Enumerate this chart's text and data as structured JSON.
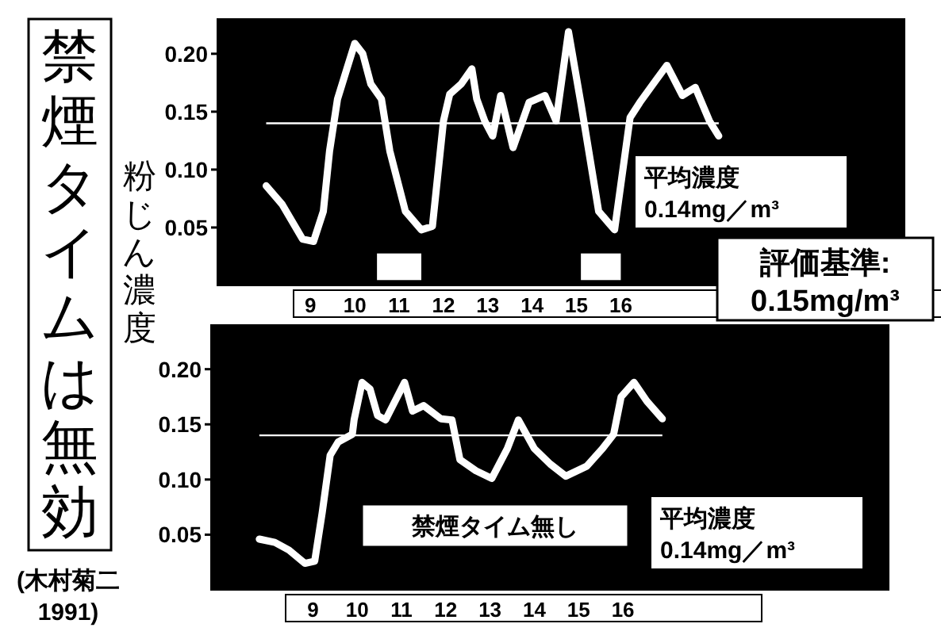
{
  "chart_data": [
    {
      "type": "line",
      "title": "禁煙タイムは無効",
      "ylabel": "粉じん濃度",
      "annotations": [
        "評価基準:\n0.15mg/m³"
      ],
      "x": [
        8.0,
        8.36,
        8.82,
        9.07,
        9.29,
        9.43,
        9.61,
        9.82,
        10.0,
        10.18,
        10.36,
        10.6,
        10.79,
        11.14,
        11.5,
        11.75,
        12.0,
        12.14,
        12.4,
        12.64,
        12.75,
        12.93,
        13.11,
        13.29,
        13.57,
        13.93,
        14.29,
        14.54,
        14.82,
        15.11,
        15.5,
        15.86,
        16.21,
        16.43,
        16.79,
        17.04,
        17.39,
        17.68,
        18.0,
        18.21
      ],
      "series": [
        {
          "color": "#ffffff",
          "line_style": "solid",
          "values": [
            0.086,
            0.07,
            0.04,
            0.038,
            0.064,
            0.116,
            0.161,
            0.187,
            0.209,
            0.2,
            0.174,
            0.161,
            0.116,
            0.064,
            0.048,
            0.051,
            0.142,
            0.165,
            0.174,
            0.187,
            0.161,
            0.142,
            0.129,
            0.164,
            0.119,
            0.158,
            0.164,
            0.142,
            0.219,
            0.155,
            0.064,
            0.048,
            0.145,
            0.158,
            0.177,
            0.19,
            0.164,
            0.171,
            0.142,
            0.129
          ]
        }
      ],
      "xlim": [
        6.9,
        22.4
      ],
      "ylim": [
        0,
        0.23
      ],
      "xticks": [
        9,
        10,
        11,
        12,
        13,
        14,
        15,
        16
      ],
      "yticks": [
        {
          "value": 0.05,
          "label": "0.05"
        },
        {
          "value": 0.1,
          "label": "0.10"
        },
        {
          "value": 0.15,
          "label": "0.15"
        },
        {
          "value": 0.2,
          "label": "0.20"
        }
      ],
      "ref_lines": [
        {
          "axis": "y",
          "value": 0.14,
          "label": "平均濃度\n0.14mg／m³",
          "color": "#ffffff"
        }
      ],
      "bands": [
        {
          "axis": "x",
          "from": 10.5,
          "to": 11.5,
          "color": "#ffffff"
        },
        {
          "axis": "x",
          "from": 15.1,
          "to": 16.0,
          "color": "#ffffff"
        }
      ]
    },
    {
      "type": "line",
      "annotations": [
        "禁煙タイム無し",
        "(木村菊二\n1991)"
      ],
      "x": [
        7.79,
        8.14,
        8.46,
        8.82,
        9.04,
        9.21,
        9.39,
        9.57,
        9.89,
        9.93,
        10.11,
        10.29,
        10.46,
        10.64,
        11.07,
        11.25,
        11.5,
        11.89,
        12.14,
        12.32,
        12.68,
        13.04,
        13.39,
        13.64,
        14.0,
        14.36,
        14.71,
        15.18,
        15.54,
        15.79,
        15.96,
        16.25,
        16.54,
        16.89
      ],
      "series": [
        {
          "color": "#ffffff",
          "line_style": "solid",
          "values": [
            0.046,
            0.043,
            0.036,
            0.024,
            0.026,
            0.07,
            0.122,
            0.134,
            0.141,
            0.154,
            0.188,
            0.182,
            0.158,
            0.154,
            0.188,
            0.162,
            0.167,
            0.155,
            0.154,
            0.118,
            0.108,
            0.101,
            0.128,
            0.154,
            0.128,
            0.114,
            0.103,
            0.112,
            0.128,
            0.141,
            0.175,
            0.188,
            0.171,
            0.155
          ]
        }
      ],
      "xlim": [
        6.7,
        22.0
      ],
      "ylim": [
        0,
        0.24
      ],
      "xticks": [
        9,
        10,
        11,
        12,
        13,
        14,
        15,
        16
      ],
      "yticks": [
        {
          "value": 0.05,
          "label": "0.05"
        },
        {
          "value": 0.1,
          "label": "0.10"
        },
        {
          "value": 0.15,
          "label": "0.15"
        },
        {
          "value": 0.2,
          "label": "0.20"
        }
      ],
      "ref_lines": [
        {
          "axis": "y",
          "value": 0.14,
          "label": "平均濃度\n0.14mg／m³",
          "color": "#ffffff"
        }
      ]
    }
  ]
}
